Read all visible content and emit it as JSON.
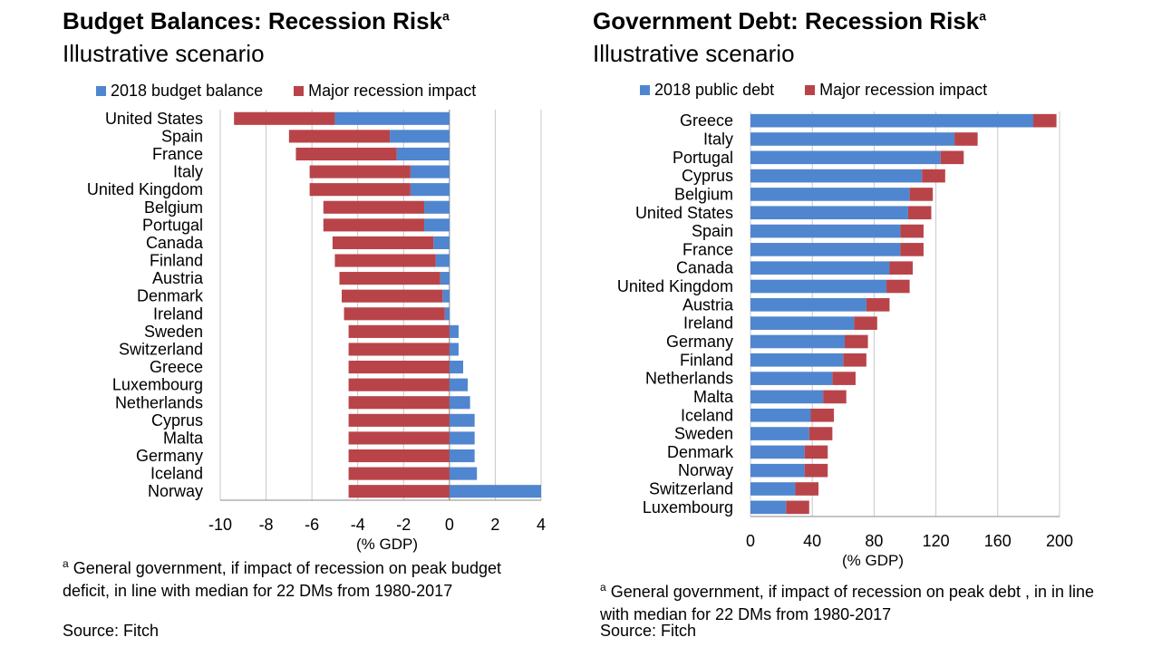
{
  "colors": {
    "blue": "#4f86cf",
    "red": "#b8444a",
    "grid": "#c8c8c8",
    "axis": "#8a8a8a"
  },
  "left": {
    "title": "Budget Balances: Recession Risk",
    "title_sup": "a",
    "subtitle": "Illustrative scenario",
    "legend": [
      "2018 budget balance",
      "Major recession impact"
    ],
    "footnote_sup": "a",
    "footnote": "General government, if impact of recession on peak budget deficit, in line with median for 22 DMs from 1980-2017",
    "source": "Source: Fitch"
  },
  "right": {
    "title": "Government Debt: Recession Risk",
    "title_sup": "a",
    "subtitle": "Illustrative scenario",
    "legend": [
      "2018 public debt",
      "Major recession impact"
    ],
    "footnote_sup": "a",
    "footnote": "General government, if impact of recession on peak debt , in in line with median for 22 DMs from 1980-2017",
    "source": "Source: Fitch"
  },
  "chart_data": [
    {
      "type": "bar",
      "orientation": "horizontal",
      "stacked": true,
      "title": "Budget Balances: Recession Risk",
      "xlabel": "(% GDP)",
      "xlim": [
        -10,
        4
      ],
      "xticks": [
        -10,
        -8,
        -6,
        -4,
        -2,
        0,
        2,
        4
      ],
      "categories": [
        "United States",
        "Spain",
        "France",
        "Italy",
        "United Kingdom",
        "Belgium",
        "Portugal",
        "Canada",
        "Finland",
        "Austria",
        "Denmark",
        "Ireland",
        "Sweden",
        "Switzerland",
        "Greece",
        "Luxembourg",
        "Netherlands",
        "Cyprus",
        "Malta",
        "Germany",
        "Iceland",
        "Norway"
      ],
      "series": [
        {
          "name": "2018 budget balance",
          "values": [
            -5.0,
            -2.6,
            -2.3,
            -1.7,
            -1.7,
            -1.1,
            -1.1,
            -0.7,
            -0.6,
            -0.4,
            -0.3,
            -0.2,
            0.4,
            0.4,
            0.6,
            0.8,
            0.9,
            1.1,
            1.1,
            1.1,
            1.2,
            4.0
          ]
        },
        {
          "name": "Major recession impact",
          "values": [
            -4.4,
            -4.4,
            -4.4,
            -4.4,
            -4.4,
            -4.4,
            -4.4,
            -4.4,
            -4.4,
            -4.4,
            -4.4,
            -4.4,
            -4.4,
            -4.4,
            -4.4,
            -4.4,
            -4.4,
            -4.4,
            -4.4,
            -4.4,
            -4.4,
            -4.4
          ]
        }
      ]
    },
    {
      "type": "bar",
      "orientation": "horizontal",
      "stacked": true,
      "title": "Government Debt: Recession Risk",
      "xlabel": "(% GDP)",
      "xlim": [
        0,
        200
      ],
      "xticks": [
        0,
        40,
        80,
        120,
        160,
        200
      ],
      "categories": [
        "Greece",
        "Italy",
        "Portugal",
        "Cyprus",
        "Belgium",
        "United States",
        "Spain",
        "France",
        "Canada",
        "United Kingdom",
        "Austria",
        "Ireland",
        "Germany",
        "Finland",
        "Netherlands",
        "Malta",
        "Iceland",
        "Sweden",
        "Denmark",
        "Norway",
        "Switzerland",
        "Luxembourg"
      ],
      "series": [
        {
          "name": "2018 public debt",
          "values": [
            183,
            132,
            123,
            111,
            103,
            102,
            97,
            97,
            90,
            88,
            75,
            67,
            61,
            60,
            53,
            47,
            39,
            38,
            35,
            35,
            29,
            23
          ]
        },
        {
          "name": "Major recession impact",
          "values": [
            15,
            15,
            15,
            15,
            15,
            15,
            15,
            15,
            15,
            15,
            15,
            15,
            15,
            15,
            15,
            15,
            15,
            15,
            15,
            15,
            15,
            15
          ]
        }
      ]
    }
  ]
}
